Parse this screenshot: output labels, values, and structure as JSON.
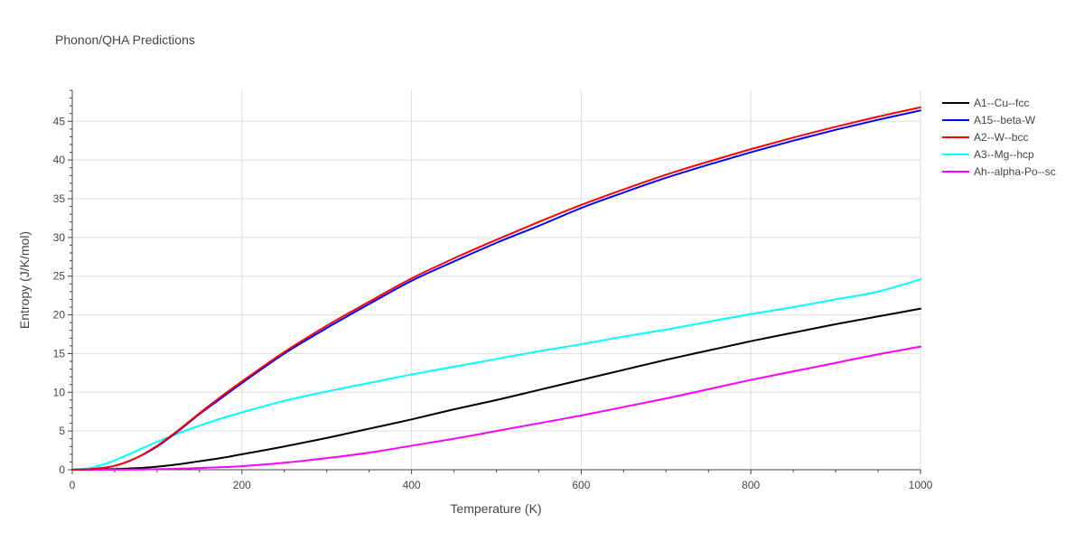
{
  "chart_data": {
    "type": "line",
    "title": "Phonon/QHA Predictions",
    "xlabel": "Temperature (K)",
    "ylabel": "Entropy (J/K/mol)",
    "xlim": [
      0,
      1000
    ],
    "ylim": [
      0,
      49
    ],
    "x_ticks": [
      0,
      200,
      400,
      600,
      800,
      1000
    ],
    "y_ticks": [
      0,
      5,
      10,
      15,
      20,
      25,
      30,
      35,
      40,
      45
    ],
    "grid": true,
    "legend_position": "top-right",
    "x": [
      0,
      25,
      50,
      75,
      100,
      125,
      150,
      175,
      200,
      250,
      300,
      350,
      400,
      450,
      500,
      550,
      600,
      650,
      700,
      750,
      800,
      850,
      900,
      950,
      1000
    ],
    "series": [
      {
        "name": "A1--Cu--fcc",
        "color": "#000000",
        "values": [
          0,
          0.02,
          0.08,
          0.2,
          0.4,
          0.7,
          1.1,
          1.5,
          2.0,
          3.0,
          4.1,
          5.3,
          6.5,
          7.8,
          9.0,
          10.3,
          11.6,
          12.9,
          14.2,
          15.4,
          16.6,
          17.7,
          18.8,
          19.8,
          20.8
        ]
      },
      {
        "name": "A15--beta-W",
        "color": "#0000ff",
        "values": [
          0,
          0.1,
          0.5,
          1.5,
          3.0,
          5.0,
          7.2,
          9.2,
          11.2,
          15.0,
          18.3,
          21.4,
          24.4,
          26.9,
          29.3,
          31.5,
          33.8,
          35.8,
          37.7,
          39.4,
          41.0,
          42.5,
          43.9,
          45.2,
          46.4
        ]
      },
      {
        "name": "A2--W--bcc",
        "color": "#ff0000",
        "values": [
          0,
          0.1,
          0.5,
          1.5,
          3.1,
          5.1,
          7.3,
          9.4,
          11.4,
          15.2,
          18.6,
          21.7,
          24.7,
          27.3,
          29.7,
          32.0,
          34.2,
          36.2,
          38.1,
          39.8,
          41.4,
          42.9,
          44.3,
          45.6,
          46.8
        ]
      },
      {
        "name": "A3--Mg--hcp",
        "color": "#00ffff",
        "values": [
          0,
          0.3,
          1.2,
          2.4,
          3.6,
          4.7,
          5.7,
          6.6,
          7.4,
          8.9,
          10.1,
          11.2,
          12.3,
          13.3,
          14.3,
          15.3,
          16.2,
          17.2,
          18.1,
          19.1,
          20.1,
          21.0,
          22.0,
          23.0,
          24.6
        ]
      },
      {
        "name": "Ah--alpha-Po--sc",
        "color": "#ff00ff",
        "values": [
          0,
          0,
          0.01,
          0.03,
          0.07,
          0.13,
          0.22,
          0.32,
          0.45,
          0.9,
          1.5,
          2.2,
          3.1,
          4.0,
          5.0,
          6.0,
          7.0,
          8.1,
          9.2,
          10.4,
          11.6,
          12.7,
          13.8,
          14.9,
          15.9
        ]
      }
    ]
  }
}
